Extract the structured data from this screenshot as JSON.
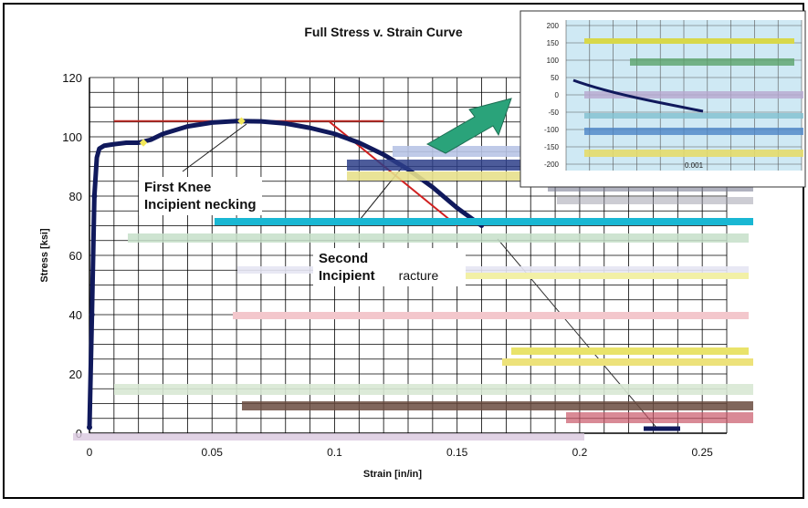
{
  "chart_data": {
    "type": "line",
    "title": "Full Stress v. Strain Curve",
    "xlabel": "Strain [in/in]",
    "ylabel": "Stress [ksi]",
    "xlim": [
      0,
      0.26
    ],
    "ylim": [
      0,
      120
    ],
    "x_ticks": [
      "0",
      "0.05",
      "0.1",
      "0.15",
      "0.2",
      "0.25"
    ],
    "y_ticks": [
      "0",
      "20",
      "40",
      "60",
      "80",
      "100",
      "120"
    ],
    "grid": true,
    "legend": "none",
    "series": [
      {
        "color": "#10195c",
        "x": [
          0,
          0.001,
          0.002,
          0.003,
          0.004,
          0.006,
          0.01,
          0.015,
          0.02,
          0.025,
          0.03,
          0.04,
          0.05,
          0.06,
          0.07,
          0.08,
          0.09,
          0.1,
          0.11,
          0.12,
          0.13,
          0.14,
          0.15,
          0.155,
          0.16
        ],
        "y": [
          2,
          40,
          80,
          93,
          96,
          97,
          97.5,
          98,
          98,
          99,
          101,
          103.5,
          104.8,
          105.3,
          105.2,
          104.5,
          103,
          101,
          98,
          94,
          89,
          83,
          76,
          73,
          70
        ]
      }
    ],
    "reference_lines": [
      {
        "color": "#c0302a",
        "x": [
          0.01,
          0.12
        ],
        "y": [
          105.3,
          105.3
        ]
      },
      {
        "color": "#d02020",
        "x": [
          0.098,
          0.15
        ],
        "y": [
          105,
          70
        ]
      }
    ],
    "markers": [
      {
        "color": "#f2e85a",
        "x": 0.022,
        "y": 98
      },
      {
        "color": "#f2e85a",
        "x": 0.062,
        "y": 105.3
      }
    ],
    "annotations": [
      {
        "lines": [
          "First Knee",
          "Incipient necking"
        ]
      },
      {
        "lines": [
          "Second",
          "Incipient",
          "racture"
        ]
      }
    ]
  },
  "colors": {
    "curve": "#10195c",
    "arrow": "#2aa37a",
    "inset_bg": "#cfe9f4"
  },
  "inset": {
    "y_ticks": [
      "200",
      "150",
      "100",
      "50",
      "0",
      "-50",
      "-100",
      "-150",
      "-200"
    ],
    "x_tick": "0.001"
  }
}
